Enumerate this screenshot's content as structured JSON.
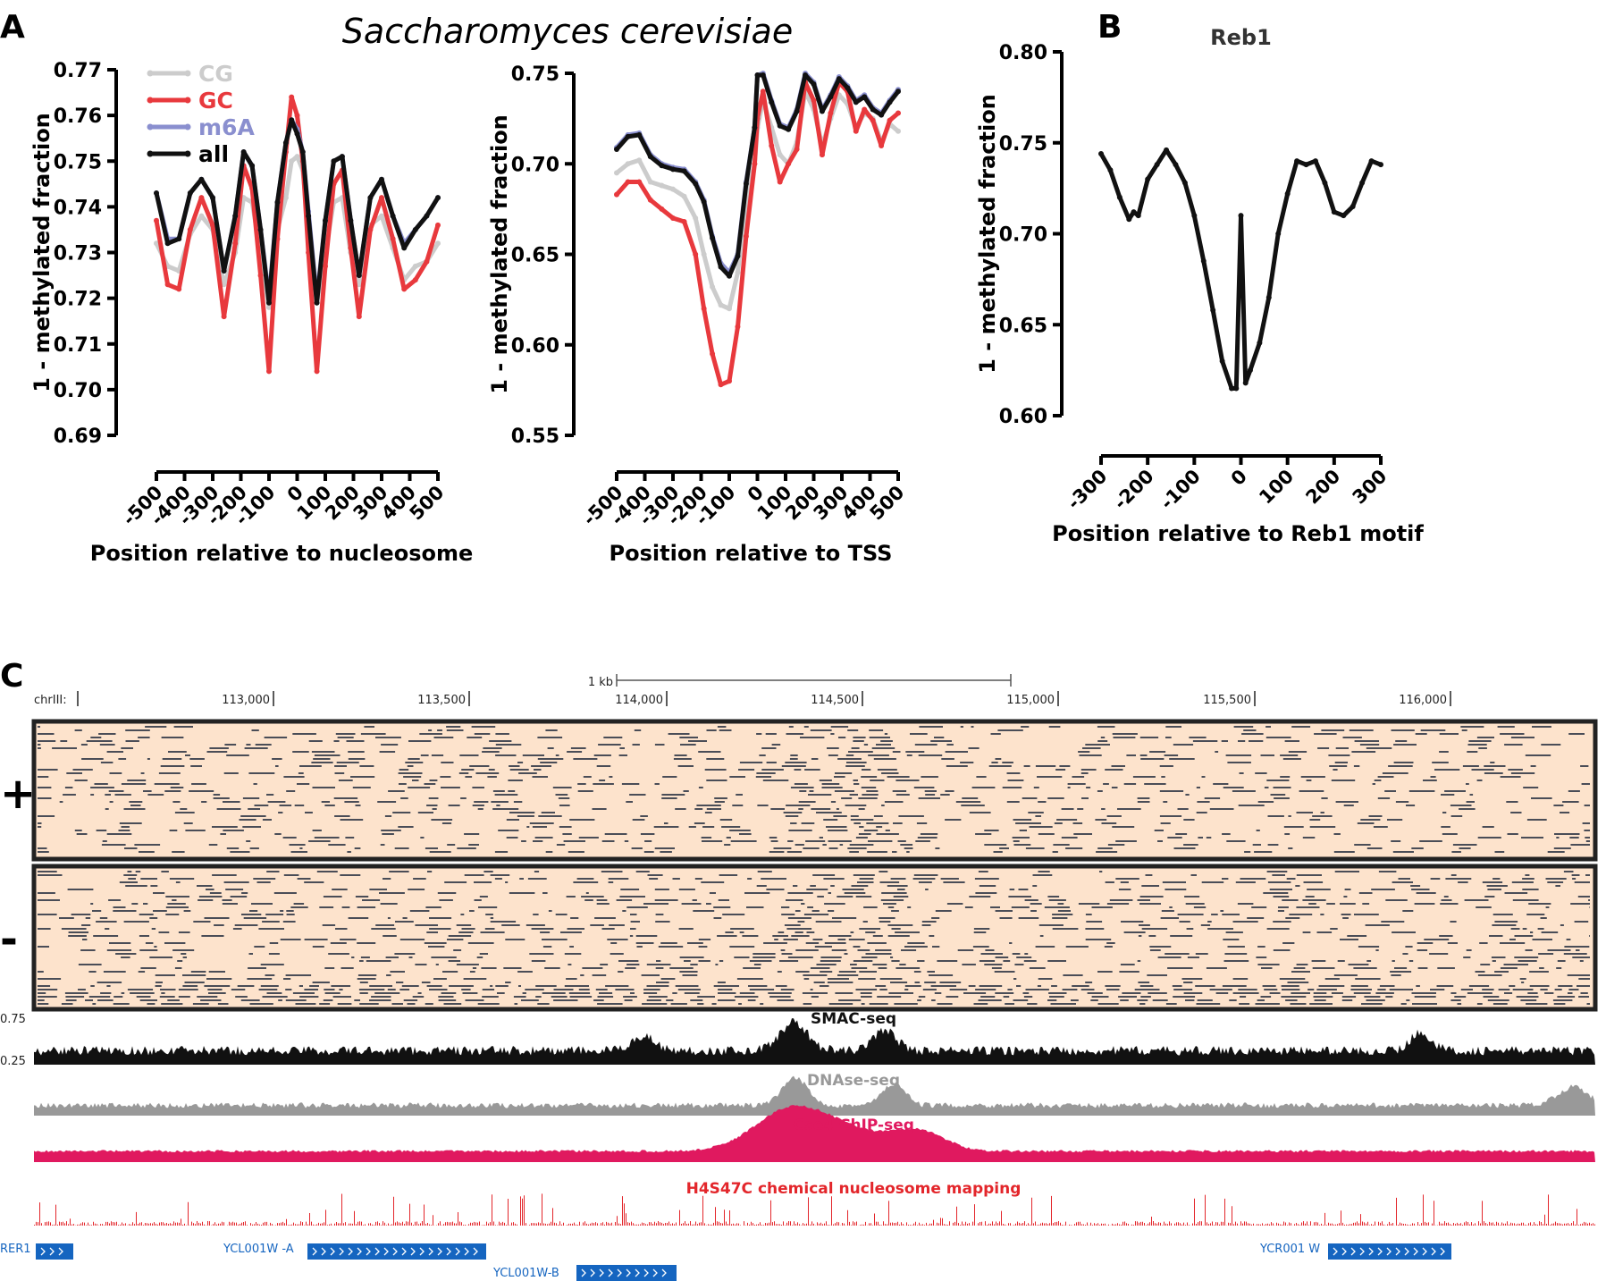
{
  "figure": {
    "species_title": "Saccharomyces cerevisiae",
    "panel_labels": {
      "a": "A",
      "b": "B",
      "c": "C"
    }
  },
  "colors": {
    "cg": "#cccccc",
    "gc": "#e8393d",
    "m6a": "#8a8fcf",
    "all": "#111111",
    "dnase": "#999999",
    "cse4": "#e0195f",
    "h4s47c": "#e3262b",
    "gene": "#1565c0",
    "read_bg": "#fde3cc",
    "read_mark": "#4a4d57"
  },
  "chart_data": [
    {
      "id": "nucleosome",
      "type": "line",
      "xlabel": "Position relative to nucleosome",
      "ylabel": "1 - methylated fraction",
      "xlim": [
        -500,
        500
      ],
      "ylim": [
        0.69,
        0.77
      ],
      "x_ticks": [
        "-500",
        "-400",
        "-300",
        "-200",
        "-100",
        "0",
        "100",
        "200",
        "300",
        "400",
        "500"
      ],
      "y_ticks": [
        "0.69",
        "0.70",
        "0.71",
        "0.72",
        "0.73",
        "0.74",
        "0.75",
        "0.76",
        "0.77"
      ],
      "legend_position": "top-left",
      "x": [
        -500,
        -460,
        -420,
        -380,
        -340,
        -300,
        -260,
        -220,
        -190,
        -160,
        -130,
        -100,
        -70,
        -40,
        -20,
        0,
        20,
        40,
        70,
        100,
        130,
        160,
        190,
        220,
        260,
        300,
        340,
        380,
        420,
        460,
        500
      ],
      "series": [
        {
          "name": "CG",
          "color_key": "cg",
          "values": [
            0.732,
            0.727,
            0.726,
            0.734,
            0.738,
            0.735,
            0.723,
            0.73,
            0.742,
            0.741,
            0.73,
            0.718,
            0.735,
            0.742,
            0.75,
            0.751,
            0.748,
            0.735,
            0.719,
            0.73,
            0.741,
            0.742,
            0.73,
            0.723,
            0.736,
            0.738,
            0.731,
            0.724,
            0.727,
            0.728,
            0.732
          ]
        },
        {
          "name": "GC",
          "color_key": "gc",
          "values": [
            0.737,
            0.723,
            0.722,
            0.735,
            0.742,
            0.736,
            0.716,
            0.732,
            0.749,
            0.744,
            0.725,
            0.704,
            0.733,
            0.752,
            0.764,
            0.76,
            0.75,
            0.73,
            0.704,
            0.727,
            0.745,
            0.748,
            0.731,
            0.716,
            0.735,
            0.742,
            0.733,
            0.722,
            0.724,
            0.728,
            0.736
          ]
        },
        {
          "name": "m6A",
          "color_key": "m6a",
          "values": [
            0.743,
            0.733,
            0.733,
            0.743,
            0.746,
            0.742,
            0.726,
            0.738,
            0.752,
            0.749,
            0.735,
            0.72,
            0.741,
            0.754,
            0.759,
            0.757,
            0.752,
            0.739,
            0.72,
            0.737,
            0.75,
            0.751,
            0.737,
            0.725,
            0.742,
            0.746,
            0.738,
            0.732,
            0.735,
            0.738,
            0.742
          ]
        },
        {
          "name": "all",
          "color_key": "all",
          "values": [
            0.743,
            0.732,
            0.733,
            0.743,
            0.746,
            0.742,
            0.726,
            0.738,
            0.752,
            0.749,
            0.735,
            0.719,
            0.741,
            0.754,
            0.759,
            0.756,
            0.752,
            0.738,
            0.719,
            0.737,
            0.75,
            0.751,
            0.737,
            0.725,
            0.742,
            0.746,
            0.738,
            0.731,
            0.735,
            0.738,
            0.742
          ]
        }
      ]
    },
    {
      "id": "tss",
      "type": "line",
      "xlabel": "Position relative to TSS",
      "ylabel": "1 - methylated fraction",
      "xlim": [
        -500,
        500
      ],
      "ylim": [
        0.55,
        0.75
      ],
      "x_ticks": [
        "-500",
        "-400",
        "-300",
        "-200",
        "-100",
        "0",
        "100",
        "200",
        "300",
        "400",
        "500"
      ],
      "y_ticks": [
        "0.55",
        "0.60",
        "0.65",
        "0.70",
        "0.75"
      ],
      "x": [
        -500,
        -460,
        -420,
        -380,
        -340,
        -300,
        -260,
        -220,
        -190,
        -160,
        -130,
        -100,
        -70,
        -40,
        -10,
        0,
        20,
        50,
        80,
        110,
        140,
        170,
        200,
        230,
        260,
        290,
        320,
        350,
        380,
        410,
        440,
        470,
        500
      ],
      "series": [
        {
          "name": "CG",
          "color_key": "cg",
          "values": [
            0.695,
            0.7,
            0.702,
            0.69,
            0.688,
            0.686,
            0.682,
            0.67,
            0.65,
            0.632,
            0.622,
            0.62,
            0.64,
            0.68,
            0.7,
            0.72,
            0.735,
            0.72,
            0.705,
            0.7,
            0.712,
            0.74,
            0.73,
            0.71,
            0.725,
            0.738,
            0.733,
            0.72,
            0.728,
            0.725,
            0.712,
            0.722,
            0.718
          ]
        },
        {
          "name": "GC",
          "color_key": "gc",
          "values": [
            0.683,
            0.69,
            0.69,
            0.68,
            0.675,
            0.67,
            0.668,
            0.65,
            0.62,
            0.595,
            0.578,
            0.58,
            0.61,
            0.66,
            0.7,
            0.725,
            0.74,
            0.71,
            0.69,
            0.7,
            0.708,
            0.745,
            0.735,
            0.705,
            0.728,
            0.745,
            0.74,
            0.718,
            0.73,
            0.724,
            0.71,
            0.724,
            0.728
          ]
        },
        {
          "name": "m6A",
          "color_key": "m6a",
          "values": [
            0.709,
            0.716,
            0.717,
            0.705,
            0.7,
            0.698,
            0.697,
            0.69,
            0.68,
            0.66,
            0.645,
            0.64,
            0.65,
            0.69,
            0.72,
            0.749,
            0.75,
            0.735,
            0.722,
            0.72,
            0.73,
            0.75,
            0.745,
            0.73,
            0.738,
            0.748,
            0.743,
            0.735,
            0.738,
            0.731,
            0.728,
            0.735,
            0.741
          ]
        },
        {
          "name": "all",
          "color_key": "all",
          "values": [
            0.708,
            0.715,
            0.716,
            0.704,
            0.699,
            0.697,
            0.696,
            0.689,
            0.679,
            0.659,
            0.643,
            0.638,
            0.649,
            0.689,
            0.72,
            0.749,
            0.749,
            0.734,
            0.721,
            0.719,
            0.729,
            0.749,
            0.744,
            0.729,
            0.737,
            0.747,
            0.742,
            0.734,
            0.737,
            0.73,
            0.727,
            0.734,
            0.74
          ]
        }
      ]
    },
    {
      "id": "reb1",
      "type": "line",
      "title": "Reb1",
      "xlabel": "Position relative to Reb1 motif",
      "ylabel": "1 - methylated fraction",
      "xlim": [
        -300,
        300
      ],
      "ylim": [
        0.6,
        0.8
      ],
      "x_ticks": [
        "-300",
        "-200",
        "-100",
        "0",
        "100",
        "200",
        "300"
      ],
      "y_ticks": [
        "0.60",
        "0.65",
        "0.70",
        "0.75",
        "0.80"
      ],
      "x": [
        -300,
        -280,
        -260,
        -240,
        -230,
        -220,
        -200,
        -180,
        -160,
        -140,
        -120,
        -100,
        -80,
        -60,
        -40,
        -20,
        -10,
        0,
        10,
        20,
        40,
        60,
        80,
        100,
        120,
        140,
        160,
        180,
        200,
        220,
        240,
        260,
        280,
        300
      ],
      "series": [
        {
          "name": "",
          "color_key": "all",
          "values": [
            0.744,
            0.735,
            0.72,
            0.708,
            0.712,
            0.71,
            0.73,
            0.738,
            0.746,
            0.738,
            0.728,
            0.71,
            0.685,
            0.658,
            0.63,
            0.615,
            0.615,
            0.71,
            0.618,
            0.625,
            0.64,
            0.665,
            0.7,
            0.722,
            0.74,
            0.738,
            0.74,
            0.728,
            0.712,
            0.71,
            0.715,
            0.728,
            0.74,
            0.738
          ]
        }
      ]
    },
    {
      "id": "browser",
      "type": "area",
      "scale_label": "1 kb",
      "chrom_label": "chrIII:",
      "x_ticks": [
        "113,000",
        "113,500",
        "114,000",
        "114,500",
        "115,000",
        "115,500",
        "116,000"
      ],
      "y_ticks": [
        "0.75",
        "0.25"
      ],
      "strand_labels": [
        "+",
        "-"
      ],
      "tracks": [
        {
          "name": "SMAC-seq",
          "color_key": "all"
        },
        {
          "name": "DNAse-seq",
          "color_key": "dnase"
        },
        {
          "name": "Cse4 ChIP-seq",
          "color_key": "cse4"
        },
        {
          "name": "H4S47C chemical nucleosome mapping",
          "color_key": "h4s47c"
        }
      ],
      "genes": [
        {
          "name": "RER1"
        },
        {
          "name": "YCL001W -A"
        },
        {
          "name": "YCL001W-B"
        },
        {
          "name": "YCR001 W"
        }
      ]
    }
  ]
}
